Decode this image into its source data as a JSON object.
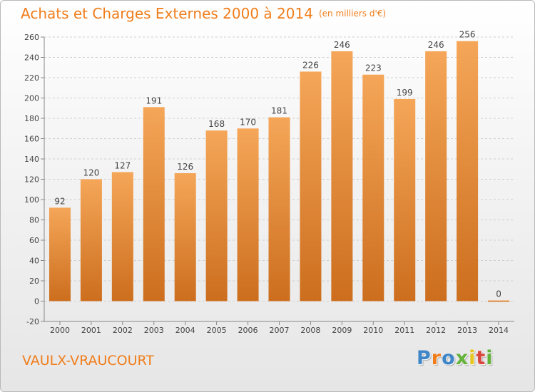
{
  "title": "Achats et Charges Externes 2000 à 2014",
  "unit": "(en milliers d'€)",
  "commune": "VAULX-VRAUCOURT",
  "logo": [
    "P",
    "r",
    "o",
    "x",
    "i",
    "t",
    "i"
  ],
  "colors": {
    "accent": "#f07d1b",
    "bar_top": "#f5a658",
    "bar_bottom": "#cc6e1e",
    "grid": "#cfcfcf"
  },
  "chart_data": {
    "type": "bar",
    "title": "Achats et Charges Externes 2000 à 2014",
    "subtitle": "(en milliers d'€)",
    "categories": [
      "2000",
      "2001",
      "2002",
      "2003",
      "2004",
      "2005",
      "2006",
      "2007",
      "2008",
      "2009",
      "2010",
      "2011",
      "2012",
      "2013",
      "2014"
    ],
    "values": [
      92,
      120,
      127,
      191,
      126,
      168,
      170,
      181,
      226,
      246,
      223,
      199,
      246,
      256,
      0
    ],
    "ylim": [
      -20,
      260
    ],
    "yticks": [
      -20,
      0,
      20,
      40,
      60,
      80,
      100,
      120,
      140,
      160,
      180,
      200,
      220,
      240,
      260
    ],
    "grid": "horizontal dashed",
    "legend": "none"
  }
}
